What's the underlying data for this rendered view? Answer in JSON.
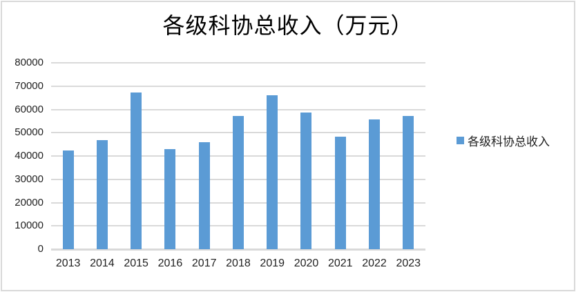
{
  "chart_data": {
    "type": "bar",
    "title": "各级科协总收入（万元）",
    "categories": [
      "2013",
      "2014",
      "2015",
      "2016",
      "2017",
      "2018",
      "2019",
      "2020",
      "2021",
      "2022",
      "2023"
    ],
    "values": [
      42500,
      46700,
      67400,
      43100,
      46000,
      57100,
      66200,
      58700,
      48300,
      55600,
      57100
    ],
    "series_name": "各级科协总收入",
    "xlabel": "",
    "ylabel": "",
    "ylim": [
      0,
      80000
    ],
    "yticks": [
      0,
      10000,
      20000,
      30000,
      40000,
      50000,
      60000,
      70000,
      80000
    ],
    "grid": true,
    "legend_position": "right",
    "bar_color": "#5B9BD5",
    "gridline_color": "#D9D9D9",
    "tick_label_color": "#1f1f1f"
  }
}
